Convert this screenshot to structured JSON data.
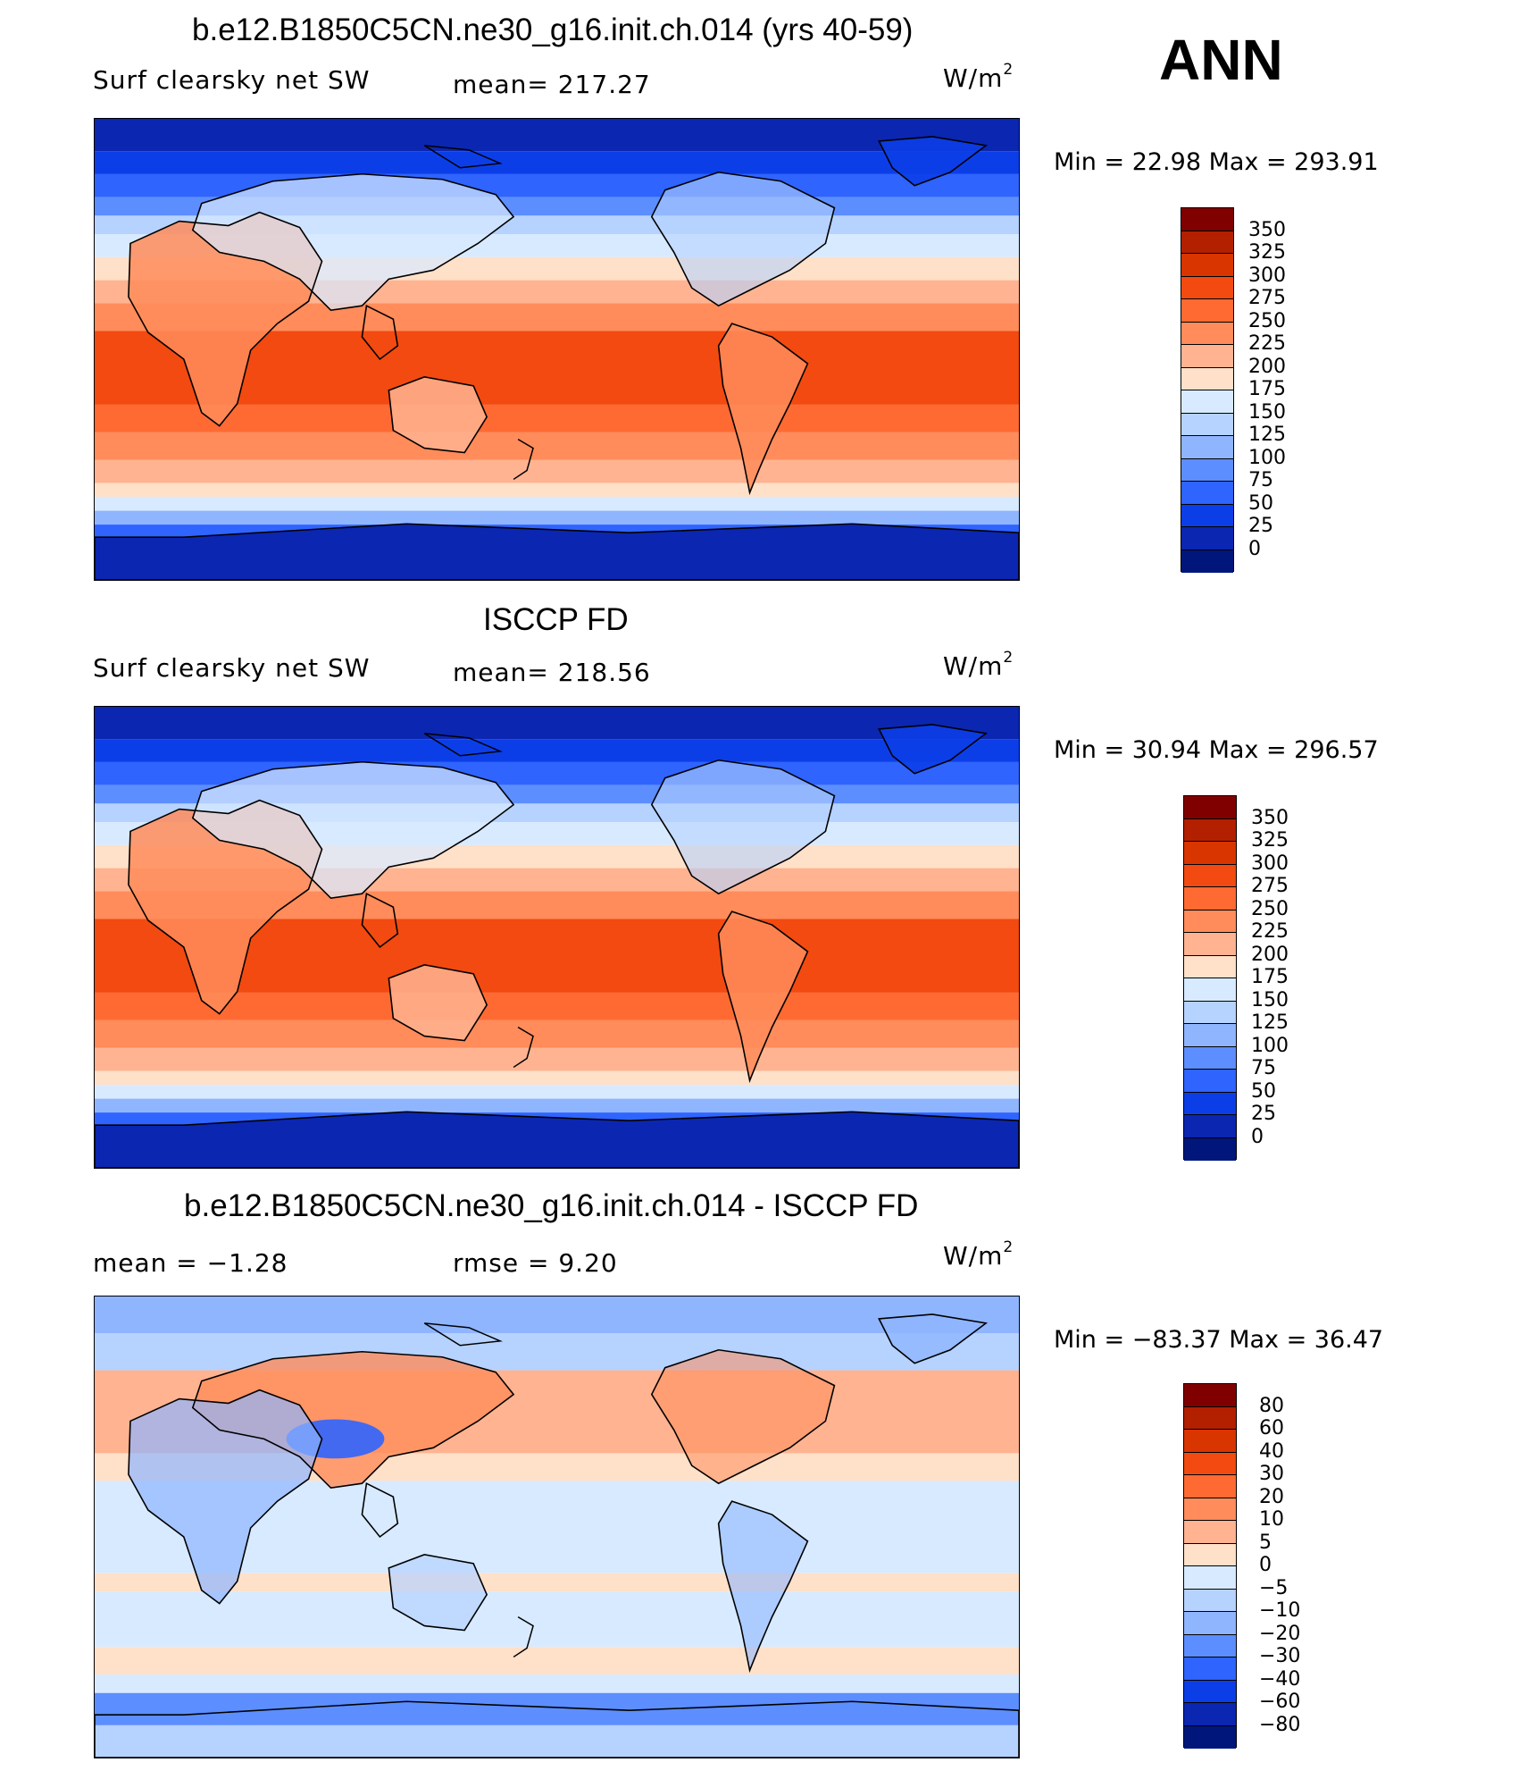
{
  "season": "ANN",
  "panels": [
    {
      "title": "b.e12.B1850C5CN.ne30_g16.init.ch.014 (yrs 40-59)",
      "variable": "Surf clearsky net SW",
      "stat_text": "mean=  217.27",
      "stat2_text": "",
      "unit": "W/m",
      "unit_sup": "2",
      "minmax": "Min  =     22.98  Max  =  293.91",
      "colorbar_labels": [
        "350",
        "325",
        "300",
        "275",
        "250",
        "225",
        "200",
        "175",
        "150",
        "125",
        "100",
        "75",
        "50",
        "25",
        "0"
      ]
    },
    {
      "title": "ISCCP FD",
      "variable": "Surf clearsky net SW",
      "stat_text": "mean=  218.56",
      "stat2_text": "",
      "unit": "W/m",
      "unit_sup": "2",
      "minmax": "Min  =     30.94  Max  =  296.57",
      "colorbar_labels": [
        "350",
        "325",
        "300",
        "275",
        "250",
        "225",
        "200",
        "175",
        "150",
        "125",
        "100",
        "75",
        "50",
        "25",
        "0"
      ]
    },
    {
      "title": "b.e12.B1850C5CN.ne30_g16.init.ch.014 - ISCCP FD",
      "variable": "mean  =    −1.28",
      "stat_text": "rmse  =     9.20",
      "stat2_text": "",
      "unit": "W/m",
      "unit_sup": "2",
      "minmax": "Min  =  −83.37  Max  =     36.47",
      "colorbar_labels": [
        "80",
        "60",
        "40",
        "30",
        "20",
        "10",
        "5",
        "0",
        "−5",
        "−10",
        "−20",
        "−30",
        "−40",
        "−60",
        "−80"
      ]
    }
  ],
  "colors": {
    "abs_scale": [
      "#800000",
      "#b22000",
      "#d93500",
      "#f24a10",
      "#ff6a33",
      "#ff8c5a",
      "#ffb391",
      "#ffe0c8",
      "#d8eaff",
      "#b6d2ff",
      "#8fb5ff",
      "#5c8eff",
      "#2f64ff",
      "#0c3ee8",
      "#0b26b0",
      "#00167a"
    ],
    "diff_scale": [
      "#800000",
      "#b22000",
      "#d93500",
      "#f24a10",
      "#ff6a33",
      "#ff8c5a",
      "#ffb391",
      "#ffe0c8",
      "#d8eaff",
      "#b6d2ff",
      "#8fb5ff",
      "#5c8eff",
      "#2f64ff",
      "#0c3ee8",
      "#0b26b0",
      "#00167a"
    ],
    "coastline": "#000000"
  }
}
